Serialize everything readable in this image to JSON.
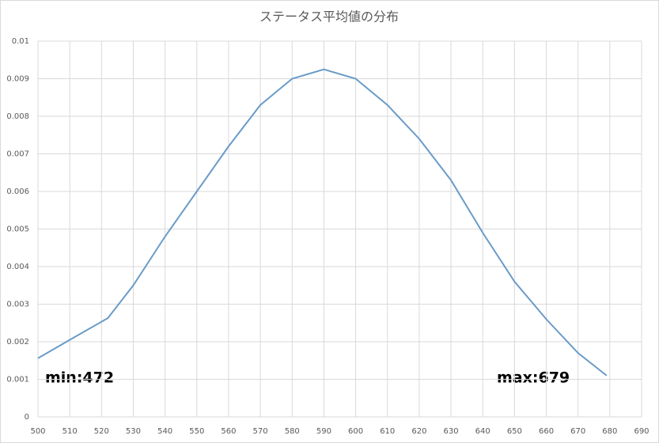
{
  "chart_data": {
    "type": "line",
    "title": "ステータス平均値の分布",
    "x": [
      500,
      510,
      522,
      530,
      540,
      550,
      560,
      570,
      580,
      590,
      600,
      610,
      620,
      630,
      640,
      650,
      660,
      670,
      679
    ],
    "series": [
      {
        "name": "ステータス平均値",
        "color": "#6a9bc8",
        "values": [
          0.00156,
          0.00205,
          0.00263,
          0.0035,
          0.0048,
          0.006,
          0.0072,
          0.0083,
          0.009,
          0.00925,
          0.009,
          0.0083,
          0.0074,
          0.0063,
          0.0049,
          0.0036,
          0.0026,
          0.0017,
          0.0011
        ]
      }
    ],
    "xlim": [
      500,
      690
    ],
    "xticks": [
      500,
      510,
      520,
      530,
      540,
      550,
      560,
      570,
      580,
      590,
      600,
      610,
      620,
      630,
      640,
      650,
      660,
      670,
      680,
      690
    ],
    "ylim": [
      0,
      0.01
    ],
    "yticks": [
      0,
      0.001,
      0.002,
      0.003,
      0.004,
      0.005,
      0.006,
      0.007,
      0.008,
      0.009,
      0.01
    ],
    "grid": true,
    "annotations": [
      "min:472",
      "max:679"
    ]
  }
}
